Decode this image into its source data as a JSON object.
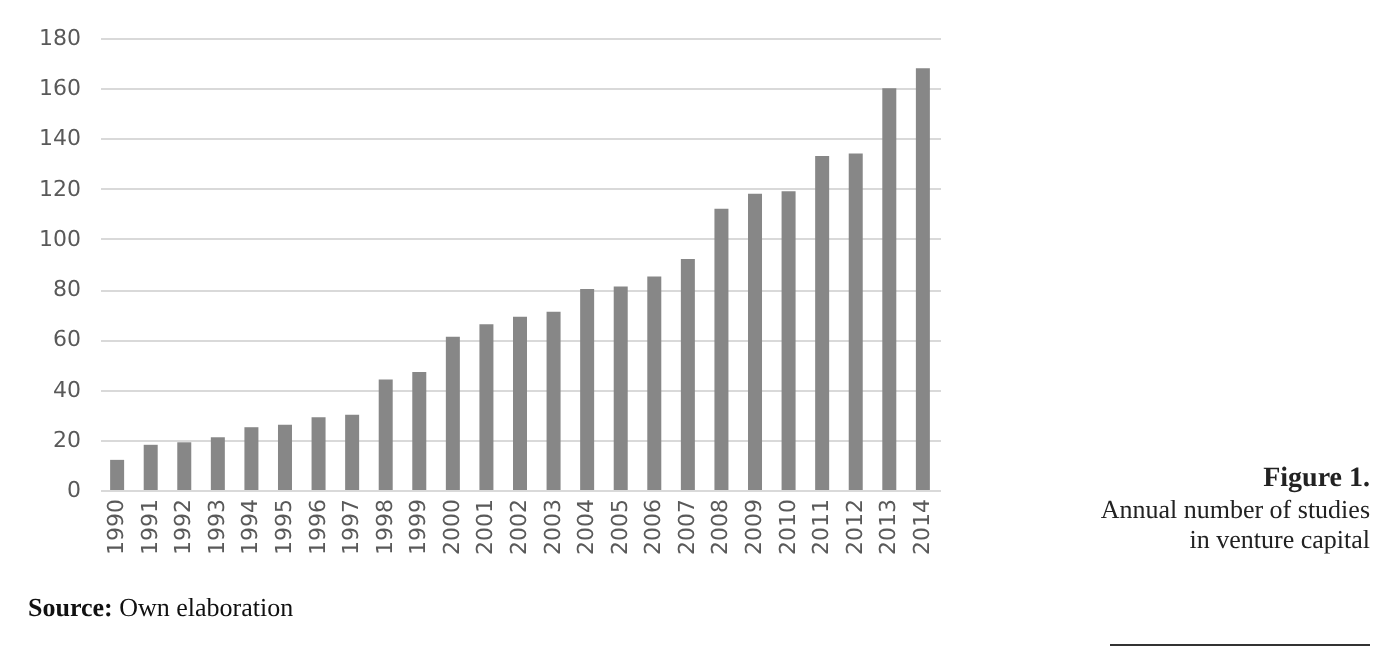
{
  "chart_data": {
    "type": "bar",
    "title": "Figure 1.",
    "subtitle": "Annual number of studies in venture capital",
    "categories": [
      "1990",
      "1991",
      "1992",
      "1993",
      "1994",
      "1995",
      "1996",
      "1997",
      "1998",
      "1999",
      "2000",
      "2001",
      "2002",
      "2003",
      "2004",
      "2005",
      "2006",
      "2007",
      "2008",
      "2009",
      "2010",
      "2011",
      "2012",
      "2013",
      "2014"
    ],
    "values": [
      12,
      18,
      19,
      21,
      25,
      26,
      29,
      30,
      44,
      47,
      61,
      66,
      69,
      71,
      80,
      81,
      85,
      92,
      112,
      118,
      119,
      133,
      134,
      160,
      168
    ],
    "color": "#878787",
    "ylim": [
      0,
      180
    ],
    "yticks": [
      0,
      20,
      40,
      60,
      80,
      100,
      120,
      140,
      160,
      180
    ],
    "grid": "y",
    "annotations": [
      "Source: Own elaboration"
    ]
  }
}
